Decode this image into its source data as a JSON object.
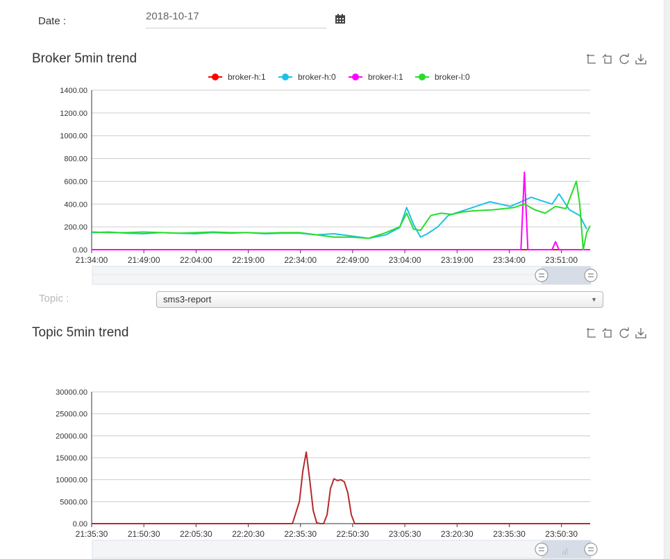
{
  "filters": {
    "date_label": "Date :",
    "date_value": "2018-10-17",
    "topic_label": "Topic :",
    "topic_value": "sms3-report"
  },
  "broker_panel": {
    "title": "Broker 5min trend",
    "toolbox_icons": [
      "zoom-icon",
      "zoom-reset-icon",
      "restore-icon",
      "download-icon"
    ]
  },
  "topic_panel": {
    "title": "Topic 5min trend",
    "toolbox_icons": [
      "zoom-icon",
      "zoom-reset-icon",
      "restore-icon",
      "download-icon"
    ]
  },
  "chart_data": [
    {
      "type": "line",
      "title": "",
      "xlabel": "",
      "ylabel": "",
      "ylim": [
        0,
        1400
      ],
      "yticks": [
        "0.00",
        "200.00",
        "400.00",
        "600.00",
        "800.00",
        "1000.00",
        "1200.00",
        "1400.00"
      ],
      "xticks": [
        "21:34:00",
        "21:49:00",
        "22:04:00",
        "22:19:00",
        "22:34:00",
        "22:49:00",
        "23:04:00",
        "23:19:00",
        "23:34:00",
        "23:51:00"
      ],
      "xlim": [
        0,
        144
      ],
      "grid": true,
      "legend_position": "top-center",
      "series": [
        {
          "name": "broker-h:1",
          "color": "#ff0000",
          "points": [
            [
              0,
              0
            ],
            [
              144,
              0
            ]
          ]
        },
        {
          "name": "broker-h:0",
          "color": "#1ec0ea",
          "points": [
            [
              0,
              150
            ],
            [
              5,
              155
            ],
            [
              10,
              145
            ],
            [
              15,
              140
            ],
            [
              20,
              150
            ],
            [
              25,
              145
            ],
            [
              30,
              140
            ],
            [
              35,
              150
            ],
            [
              40,
              145
            ],
            [
              45,
              150
            ],
            [
              50,
              140
            ],
            [
              55,
              145
            ],
            [
              60,
              145
            ],
            [
              65,
              130
            ],
            [
              70,
              140
            ],
            [
              75,
              120
            ],
            [
              80,
              100
            ],
            [
              85,
              130
            ],
            [
              89,
              195
            ],
            [
              91,
              370
            ],
            [
              93,
              220
            ],
            [
              95,
              110
            ],
            [
              97,
              140
            ],
            [
              100,
              200
            ],
            [
              103,
              300
            ],
            [
              106,
              330
            ],
            [
              109,
              360
            ],
            [
              112,
              390
            ],
            [
              115,
              420
            ],
            [
              118,
              400
            ],
            [
              121,
              380
            ],
            [
              124,
              420
            ],
            [
              127,
              460
            ],
            [
              130,
              430
            ],
            [
              133,
              400
            ],
            [
              135,
              490
            ],
            [
              138,
              350
            ],
            [
              141,
              300
            ],
            [
              143,
              180
            ]
          ]
        },
        {
          "name": "broker-l:1",
          "color": "#ff00ff",
          "points": [
            [
              0,
              0
            ],
            [
              124,
              0
            ],
            [
              125,
              680
            ],
            [
              126,
              0
            ],
            [
              133,
              0
            ],
            [
              134,
              70
            ],
            [
              135,
              0
            ],
            [
              144,
              0
            ]
          ]
        },
        {
          "name": "broker-l:0",
          "color": "#28dc28",
          "points": [
            [
              0,
              155
            ],
            [
              5,
              150
            ],
            [
              10,
              150
            ],
            [
              15,
              155
            ],
            [
              20,
              150
            ],
            [
              25,
              145
            ],
            [
              30,
              150
            ],
            [
              35,
              155
            ],
            [
              40,
              150
            ],
            [
              45,
              150
            ],
            [
              50,
              145
            ],
            [
              55,
              150
            ],
            [
              60,
              150
            ],
            [
              65,
              130
            ],
            [
              70,
              110
            ],
            [
              75,
              110
            ],
            [
              80,
              100
            ],
            [
              85,
              150
            ],
            [
              89,
              200
            ],
            [
              91,
              320
            ],
            [
              93,
              180
            ],
            [
              95,
              170
            ],
            [
              98,
              300
            ],
            [
              101,
              320
            ],
            [
              104,
              310
            ],
            [
              107,
              330
            ],
            [
              110,
              340
            ],
            [
              113,
              345
            ],
            [
              116,
              350
            ],
            [
              119,
              360
            ],
            [
              122,
              370
            ],
            [
              125,
              400
            ],
            [
              128,
              350
            ],
            [
              131,
              320
            ],
            [
              134,
              380
            ],
            [
              137,
              360
            ],
            [
              140,
              600
            ],
            [
              141,
              400
            ],
            [
              142,
              0
            ],
            [
              143,
              150
            ],
            [
              144,
              210
            ]
          ]
        }
      ]
    },
    {
      "type": "line",
      "title": "",
      "xlabel": "",
      "ylabel": "",
      "ylim": [
        0,
        30000
      ],
      "yticks": [
        "0.00",
        "5000.00",
        "10000.00",
        "15000.00",
        "20000.00",
        "25000.00",
        "30000.00"
      ],
      "xticks": [
        "21:35:30",
        "21:50:30",
        "22:05:30",
        "22:20:30",
        "22:35:30",
        "22:50:30",
        "23:05:30",
        "23:20:30",
        "23:35:30",
        "23:50:30"
      ],
      "xlim": [
        0,
        144
      ],
      "grid": true,
      "series": [
        {
          "name": "",
          "color": "#b5292b",
          "points": [
            [
              0,
              0
            ],
            [
              58,
              0
            ],
            [
              60,
              5000
            ],
            [
              61,
              12000
            ],
            [
              62,
              16300
            ],
            [
              63,
              10000
            ],
            [
              64,
              3000
            ],
            [
              65,
              200
            ],
            [
              66,
              0
            ],
            [
              67,
              0
            ],
            [
              68,
              2000
            ],
            [
              69,
              8000
            ],
            [
              70,
              10200
            ],
            [
              71,
              9800
            ],
            [
              72,
              10000
            ],
            [
              73,
              9500
            ],
            [
              74,
              7000
            ],
            [
              75,
              2000
            ],
            [
              76,
              0
            ],
            [
              144,
              0
            ]
          ]
        }
      ]
    }
  ]
}
